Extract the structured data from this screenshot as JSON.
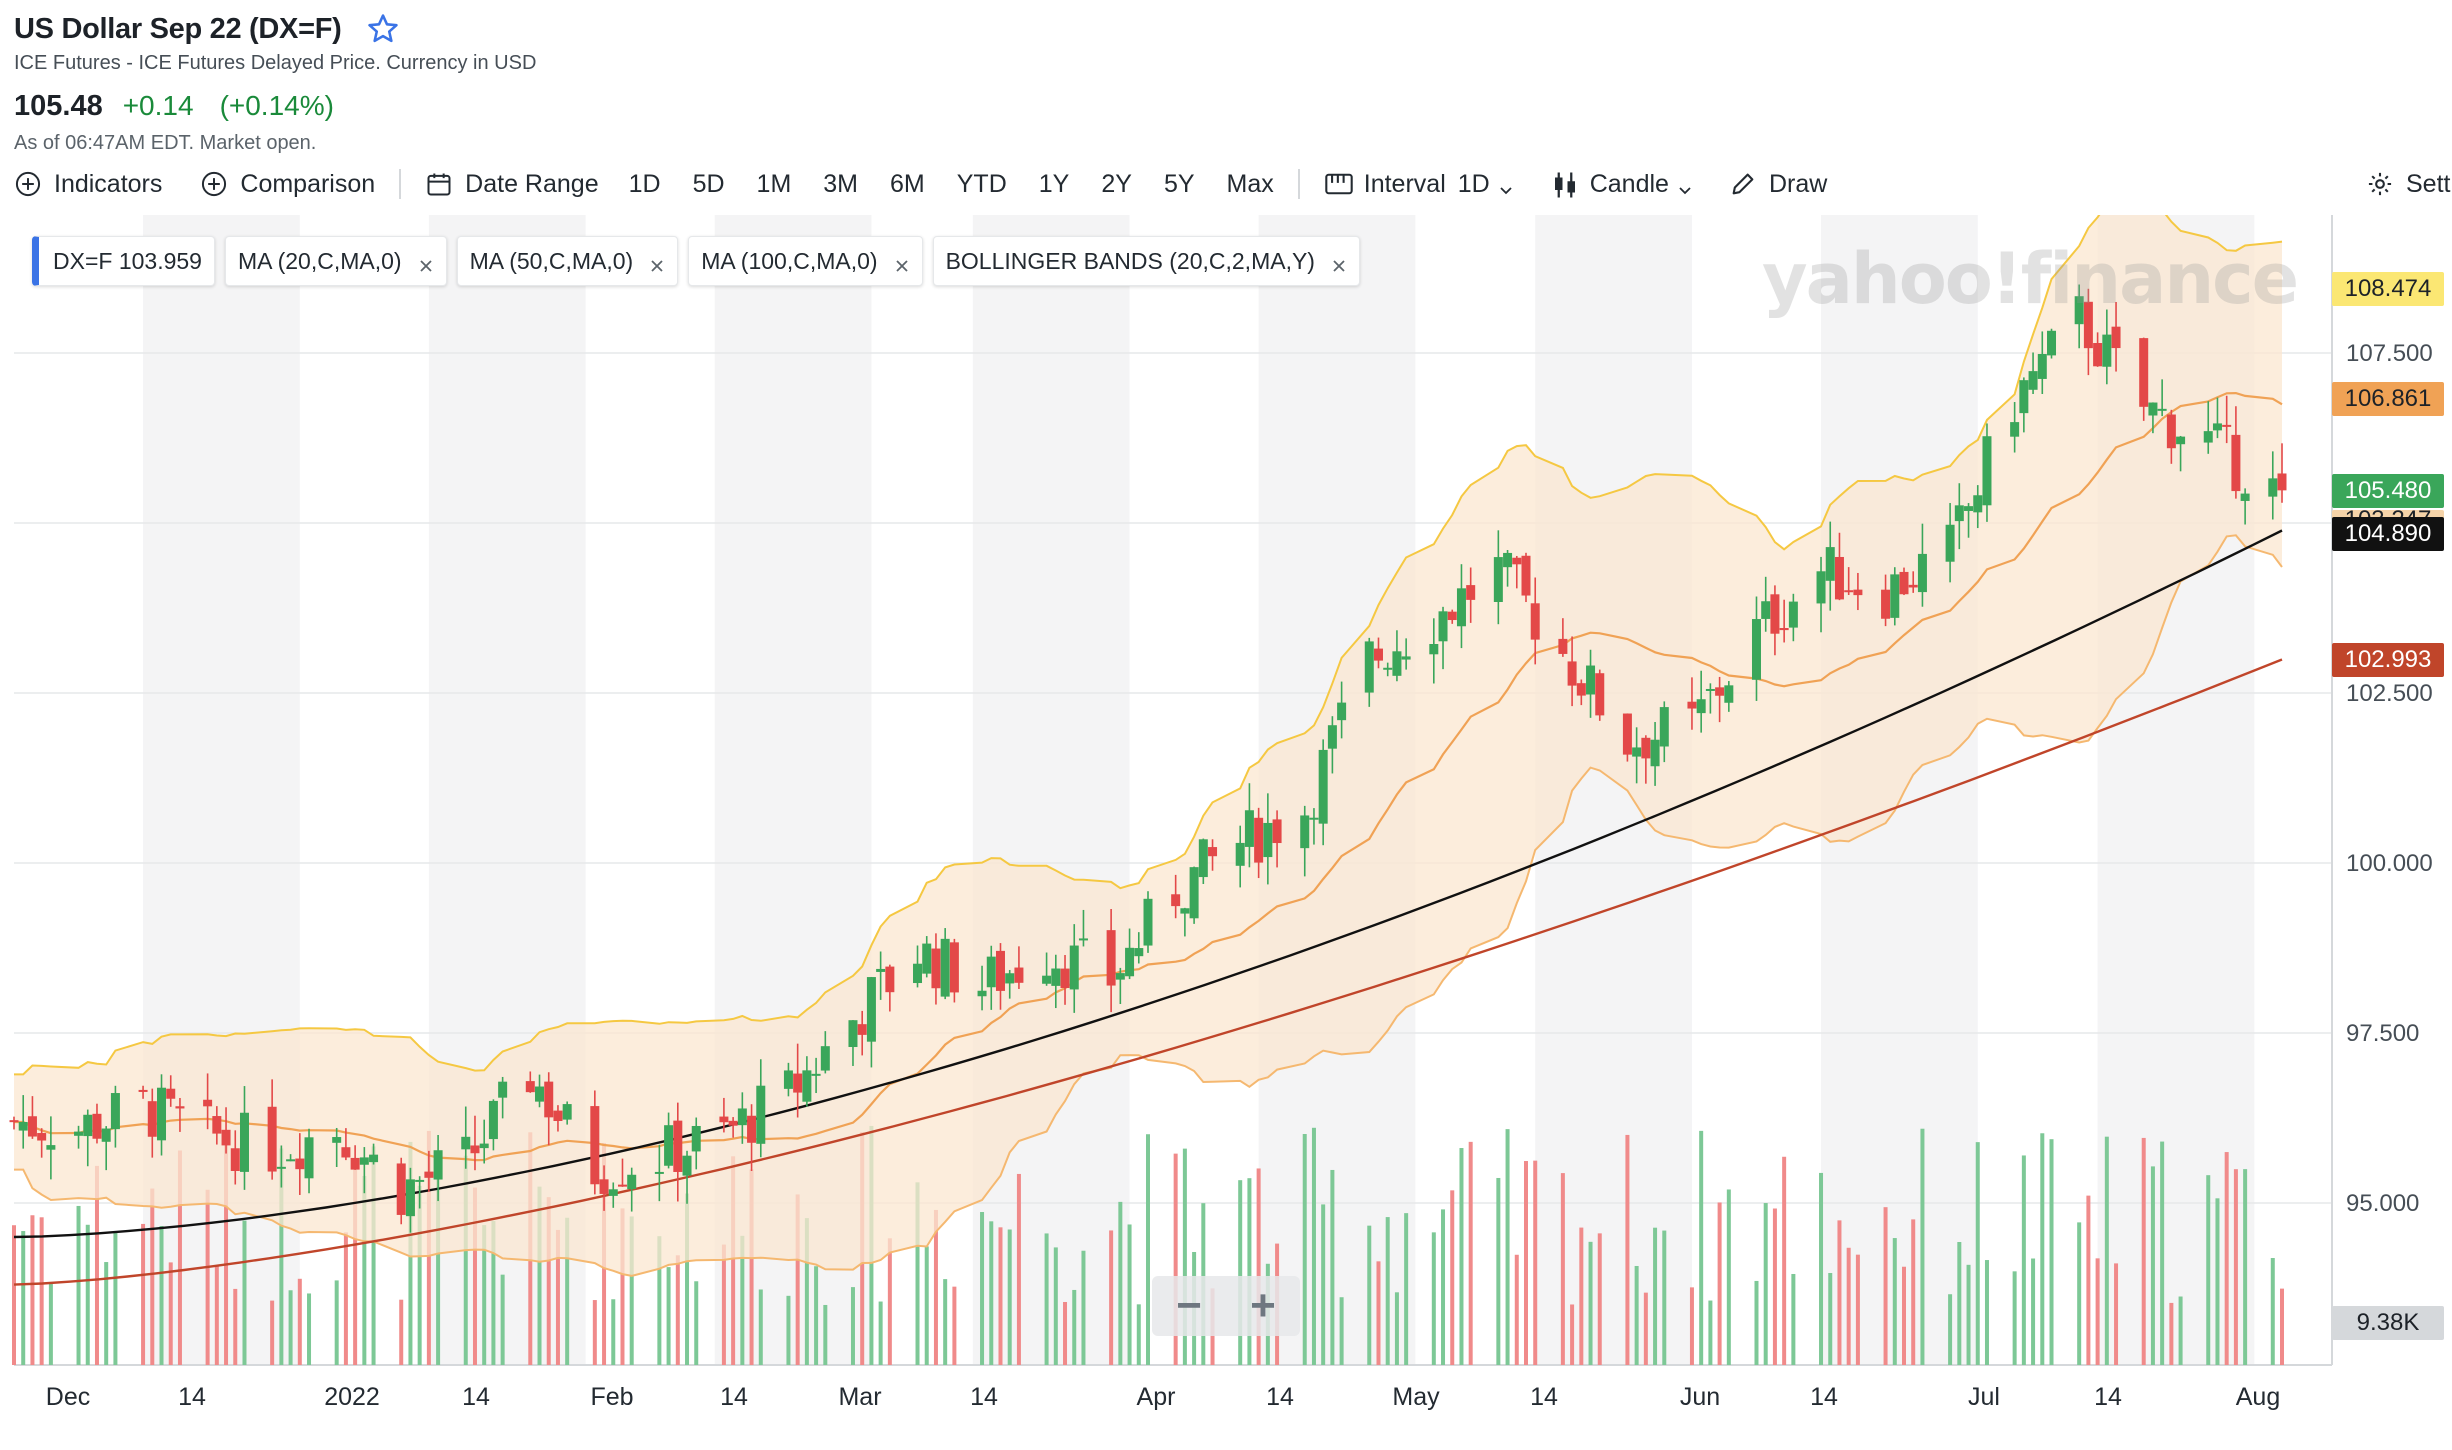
{
  "header": {
    "title": "US Dollar Sep 22 (DX=F)",
    "subtitle": "ICE Futures - ICE Futures Delayed Price. Currency in USD",
    "price": "105.48",
    "change": "+0.14",
    "change_pct": "(+0.14%)",
    "as_of": "As of 06:47AM EDT. Market open.",
    "star_icon": "star-outline-icon"
  },
  "toolbar": {
    "indicators": "Indicators",
    "comparison": "Comparison",
    "date_range": "Date Range",
    "ranges": [
      "1D",
      "5D",
      "1M",
      "3M",
      "6M",
      "YTD",
      "1Y",
      "2Y",
      "5Y",
      "Max"
    ],
    "interval_label": "Interval",
    "interval_value": "1D",
    "chart_type": "Candle",
    "draw": "Draw",
    "settings": "Settings"
  },
  "chips": {
    "main": "DX=F 103.959",
    "ma20": "MA (20,C,MA,0)",
    "ma50": "MA (50,C,MA,0)",
    "ma100": "MA (100,C,MA,0)",
    "bollinger": "BOLLINGER BANDS (20,C,2,MA,Y)"
  },
  "watermark": "yahoo!finance",
  "zoom": {
    "minus": "−",
    "plus": "+"
  },
  "badges": {
    "upper_band": "108.474",
    "ma20": "106.861",
    "last": "105.480",
    "lower_band": "103.247",
    "ma50": "104.890",
    "ma100": "102.993",
    "volume": "9.38K"
  },
  "colors": {
    "up": "#3aa65a",
    "down": "#e34848",
    "band_fill": "#fbe7d0",
    "band_line": "#f5c842",
    "ma20": "#f0a255",
    "ma50": "#111111",
    "ma100": "#c0452a",
    "accent": "#3a73e6"
  },
  "chart_data": {
    "type": "candlestick",
    "y_axis": {
      "ticks": [
        "107.500",
        "102.500",
        "100.000",
        "97.500",
        "95.000"
      ],
      "range": [
        92.0,
        109.8
      ]
    },
    "x_axis": {
      "ticks": [
        "Dec",
        "14",
        "2022",
        "14",
        "Feb",
        "14",
        "Mar",
        "14",
        "Apr",
        "14",
        "May",
        "14",
        "Jun",
        "14",
        "Jul",
        "14",
        "Aug"
      ]
    },
    "date_range": [
      "2021-11-29",
      "2022-08-02"
    ],
    "series_close": [
      [
        "2021-11-29",
        96.2
      ],
      [
        "2021-12-06",
        96.1
      ],
      [
        "2021-12-13",
        96.4
      ],
      [
        "2021-12-20",
        96.0
      ],
      [
        "2021-12-27",
        95.8
      ],
      [
        "2022-01-03",
        96.1
      ],
      [
        "2022-01-10",
        95.2
      ],
      [
        "2022-01-17",
        95.6
      ],
      [
        "2022-01-24",
        96.9
      ],
      [
        "2022-01-31",
        95.5
      ],
      [
        "2022-02-07",
        95.7
      ],
      [
        "2022-02-14",
        96.0
      ],
      [
        "2022-02-21",
        96.6
      ],
      [
        "2022-02-28",
        97.7
      ],
      [
        "2022-03-07",
        98.7
      ],
      [
        "2022-03-14",
        98.2
      ],
      [
        "2022-03-21",
        98.7
      ],
      [
        "2022-03-28",
        98.3
      ],
      [
        "2022-04-04",
        99.6
      ],
      [
        "2022-04-11",
        100.3
      ],
      [
        "2022-04-18",
        100.8
      ],
      [
        "2022-04-25",
        103.0
      ],
      [
        "2022-05-02",
        103.6
      ],
      [
        "2022-05-09",
        104.3
      ],
      [
        "2022-05-16",
        103.1
      ],
      [
        "2022-05-23",
        101.8
      ],
      [
        "2022-05-30",
        102.0
      ],
      [
        "2022-06-06",
        103.4
      ],
      [
        "2022-06-13",
        104.3
      ],
      [
        "2022-06-20",
        104.0
      ],
      [
        "2022-06-27",
        104.6
      ],
      [
        "2022-07-04",
        106.8
      ],
      [
        "2022-07-11",
        108.0
      ],
      [
        "2022-07-18",
        106.7
      ],
      [
        "2022-07-25",
        106.2
      ],
      [
        "2022-08-01",
        105.48
      ]
    ],
    "indicators": [
      "MA 20",
      "MA 50",
      "MA 100",
      "Bollinger Bands (20,2)"
    ],
    "ma100_range": [
      93.8,
      102.993
    ],
    "ma50_range": [
      94.5,
      104.89
    ],
    "last_price": 105.48
  }
}
